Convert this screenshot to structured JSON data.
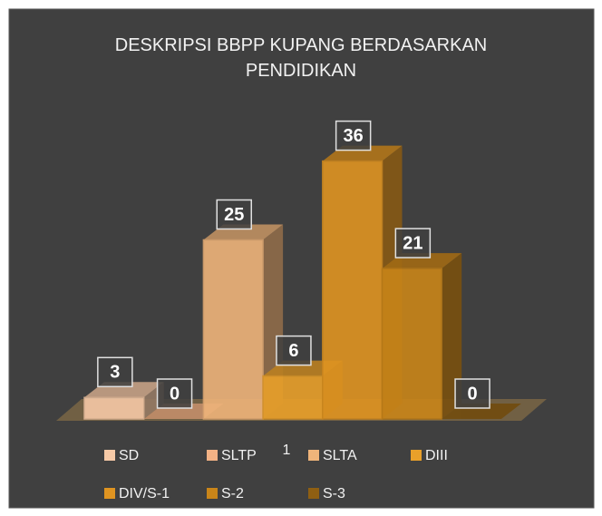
{
  "chart_data": {
    "type": "bar3d",
    "title": "DESKRIPSI BBPP KUPANG BERDASARKAN PENDIDIKAN",
    "categories": [
      "1"
    ],
    "ylim": [
      0,
      40
    ],
    "series": [
      {
        "name": "SD",
        "color": "#f6c9a6",
        "values": [
          3
        ]
      },
      {
        "name": "SLTP",
        "color": "#f3b285",
        "values": [
          0
        ]
      },
      {
        "name": "SLTA",
        "color": "#efb47a",
        "values": [
          25
        ]
      },
      {
        "name": "DIII",
        "color": "#e9a02a",
        "values": [
          6
        ]
      },
      {
        "name": "DIV/S-1",
        "color": "#df9421",
        "values": [
          36
        ]
      },
      {
        "name": "S-2",
        "color": "#c98519",
        "values": [
          21
        ]
      },
      {
        "name": "S-3",
        "color": "#8f5f12",
        "values": [
          0
        ]
      }
    ]
  }
}
